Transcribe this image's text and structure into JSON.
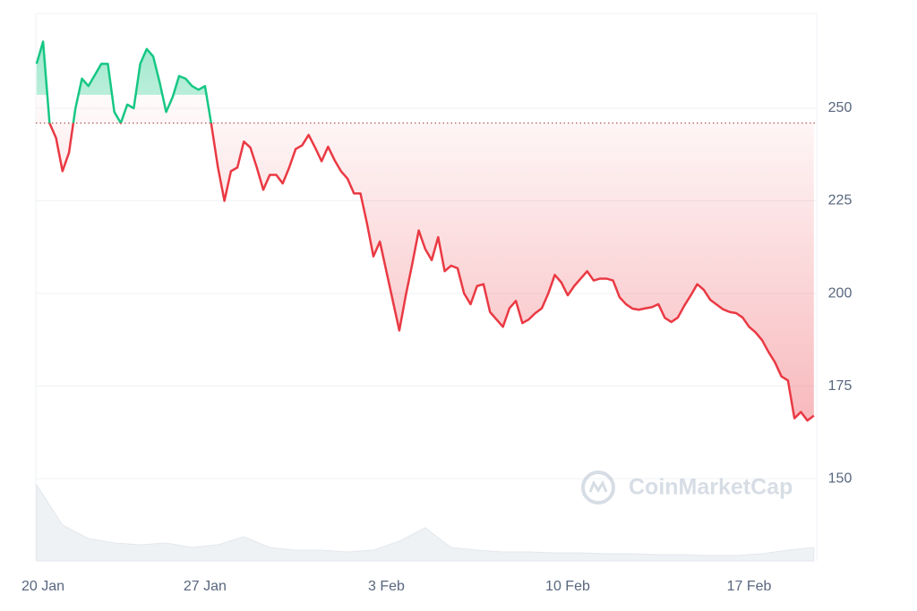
{
  "chart_data": {
    "type": "line",
    "watermark": "CoinMarketCap",
    "baseline": 246,
    "up_color": "#16c784",
    "down_color": "#ea3943",
    "grid": true,
    "xlim": [
      0.47,
      30.61
    ],
    "ylim": [
      127.8,
      275.6
    ],
    "yticks": [
      150,
      175,
      200,
      225,
      250
    ],
    "xticks": [
      {
        "value": 0,
        "label": "20 Jan"
      },
      {
        "value": 7,
        "label": "27 Jan"
      },
      {
        "value": 14,
        "label": "3 Feb"
      },
      {
        "value": 21,
        "label": "10 Feb"
      },
      {
        "value": 28,
        "label": "17 Feb"
      }
    ],
    "x": [
      0.5,
      0.75,
      1,
      1.25,
      1.5,
      1.75,
      2,
      2.25,
      2.5,
      2.75,
      3,
      3.25,
      3.5,
      3.75,
      4,
      4.25,
      4.5,
      4.75,
      5,
      5.25,
      5.5,
      5.75,
      6,
      6.25,
      6.5,
      6.75,
      7,
      7.25,
      7.5,
      7.75,
      8,
      8.25,
      8.5,
      8.75,
      9,
      9.25,
      9.5,
      9.75,
      10,
      10.25,
      10.5,
      10.75,
      11,
      11.25,
      11.5,
      11.75,
      12,
      12.25,
      12.5,
      12.75,
      13,
      13.25,
      13.5,
      13.75,
      14,
      14.25,
      14.5,
      14.75,
      15,
      15.25,
      15.5,
      15.75,
      16,
      16.25,
      16.5,
      16.75,
      17,
      17.25,
      17.5,
      17.75,
      18,
      18.25,
      18.5,
      18.75,
      19,
      19.25,
      19.5,
      19.75,
      20,
      20.25,
      20.5,
      20.75,
      21,
      21.25,
      21.5,
      21.75,
      22,
      22.25,
      22.5,
      22.75,
      23,
      23.25,
      23.5,
      23.75,
      24,
      24.25,
      24.5,
      24.75,
      25,
      25.25,
      25.5,
      25.75,
      26,
      26.25,
      26.5,
      26.75,
      27,
      27.25,
      27.5,
      27.75,
      28,
      28.25,
      28.5,
      28.75,
      29,
      29.25,
      29.5,
      29.75,
      30,
      30.25,
      30.5
    ],
    "values": [
      262,
      268,
      246,
      242,
      233,
      238,
      250,
      258,
      256,
      259,
      262,
      262,
      249,
      246,
      251,
      250,
      262,
      266,
      264,
      257,
      249,
      253,
      258.7,
      258,
      256,
      255,
      256,
      245.4,
      234,
      225,
      233,
      234,
      241,
      239.4,
      234,
      228,
      232,
      232,
      229.7,
      234,
      239,
      240,
      242.8,
      239.4,
      235.7,
      239.6,
      236,
      233,
      231,
      227,
      227,
      219,
      210,
      214,
      206,
      198,
      190,
      199.5,
      208,
      217,
      212,
      209,
      215.2,
      206,
      207.5,
      206.8,
      200,
      197.1,
      202,
      202.5,
      195,
      193,
      191,
      196,
      198,
      192,
      193,
      194.7,
      196,
      200,
      205,
      203,
      199.5,
      202,
      204,
      206,
      203.5,
      204,
      204,
      203.5,
      199,
      197.1,
      195.9,
      195.6,
      196,
      196.3,
      197.1,
      193.4,
      192.3,
      193.5,
      196.7,
      199.5,
      202.5,
      201,
      198.3,
      197,
      195.7,
      195,
      194.7,
      193.5,
      191,
      189.5,
      187.4,
      184.2,
      181.4,
      177.6,
      176.5,
      166.3,
      168,
      165.7,
      167
    ],
    "volume": {
      "color": "#eff2f5",
      "ylim": [
        0,
        100
      ],
      "x": [
        0.5,
        1.5,
        2.5,
        3.5,
        4.5,
        5.5,
        6.5,
        7.5,
        8.5,
        9.5,
        10.5,
        11.5,
        12.5,
        13.5,
        14.5,
        15.5,
        16.5,
        17.5,
        18.5,
        19.5,
        20.5,
        21.5,
        22.5,
        23.5,
        24.5,
        25.5,
        26.5,
        27.5,
        28.5,
        29.5,
        30.5
      ],
      "values": [
        85,
        40,
        25,
        20,
        18,
        20,
        15,
        18,
        27,
        15,
        12,
        12,
        10,
        12,
        22,
        37,
        15,
        12,
        10,
        10,
        9,
        9,
        8,
        8,
        7,
        7,
        6,
        6,
        8,
        12,
        15
      ]
    }
  }
}
